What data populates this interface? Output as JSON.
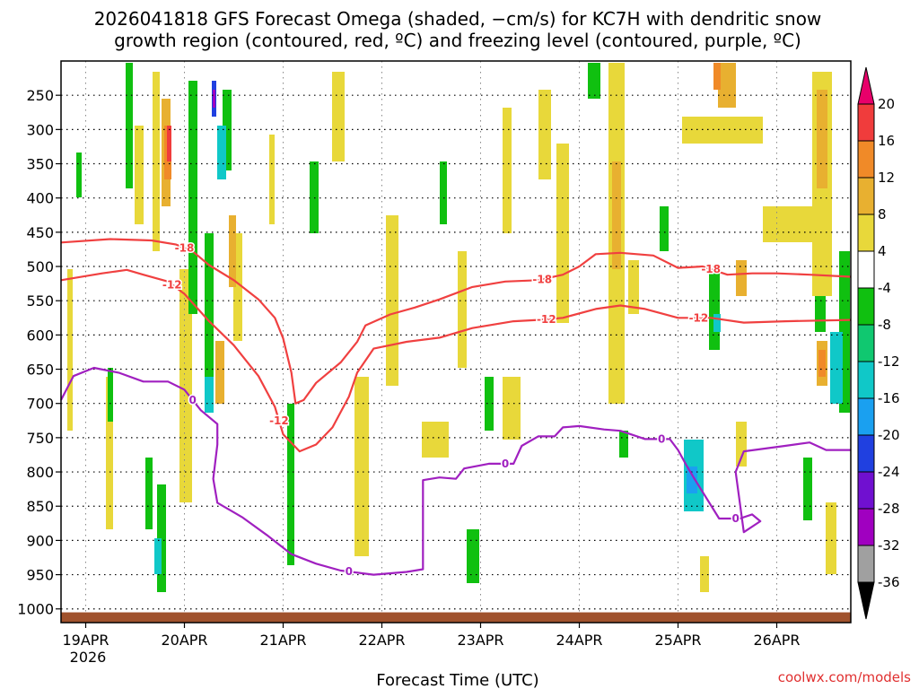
{
  "chart_data": {
    "type": "heatmap",
    "title_line1": "2026041818 GFS Forecast Omega (shaded, −cm/s) for KC7H with dendritic snow",
    "title_line2": "growth region (contoured, red, ºC) and freezing level (contoured, purple, ºC)",
    "xlabel": "Forecast Time (UTC)",
    "ylabel": "",
    "credit": "coolwx.com/models",
    "x_range_hours": [
      0,
      192
    ],
    "y_range_hpa": [
      200,
      1020
    ],
    "x_ticks": [
      {
        "label": "19APR",
        "hour": 6
      },
      {
        "label": "20APR",
        "hour": 30
      },
      {
        "label": "21APR",
        "hour": 54
      },
      {
        "label": "22APR",
        "hour": 78
      },
      {
        "label": "23APR",
        "hour": 102
      },
      {
        "label": "24APR",
        "hour": 126
      },
      {
        "label": "25APR",
        "hour": 150
      },
      {
        "label": "26APR",
        "hour": 174
      }
    ],
    "x_year_label": "2026",
    "y_ticks": [
      250,
      300,
      350,
      400,
      450,
      500,
      550,
      600,
      650,
      700,
      750,
      800,
      850,
      900,
      950,
      1000
    ],
    "colorbar": {
      "levels": [
        20,
        16,
        12,
        8,
        4,
        -4,
        -8,
        -12,
        -16,
        -20,
        -24,
        -28,
        -32,
        -36
      ],
      "colors": [
        "#e8006a",
        "#f03c3c",
        "#f08a28",
        "#e8b030",
        "#e8d83a",
        "#ffffff",
        "#10c010",
        "#10c870",
        "#10c8c8",
        "#1aa0f0",
        "#2040e0",
        "#7010d0",
        "#a000c0",
        "#a0a0a0",
        "#000000"
      ]
    },
    "contours": [
      {
        "name": "-18",
        "color": "#f04040",
        "label": "-18",
        "points": [
          [
            0,
            465
          ],
          [
            12,
            460
          ],
          [
            22,
            462
          ],
          [
            28,
            468
          ],
          [
            32,
            478
          ],
          [
            36,
            498
          ],
          [
            42,
            520
          ],
          [
            48,
            548
          ],
          [
            52,
            575
          ],
          [
            54,
            605
          ],
          [
            56,
            655
          ],
          [
            57,
            700
          ],
          [
            59,
            695
          ],
          [
            62,
            670
          ],
          [
            68,
            640
          ],
          [
            72,
            610
          ],
          [
            74,
            586
          ],
          [
            80,
            570
          ],
          [
            86,
            560
          ],
          [
            92,
            548
          ],
          [
            100,
            530
          ],
          [
            108,
            522
          ],
          [
            116,
            520
          ],
          [
            122,
            512
          ],
          [
            126,
            500
          ],
          [
            130,
            482
          ],
          [
            136,
            480
          ],
          [
            144,
            484
          ],
          [
            150,
            502
          ],
          [
            156,
            500
          ],
          [
            162,
            512
          ],
          [
            168,
            510
          ],
          [
            174,
            510
          ],
          [
            182,
            512
          ],
          [
            192,
            515
          ]
        ],
        "label_hours": [
          30,
          117,
          158
        ]
      },
      {
        "name": "-12",
        "color": "#f04040",
        "label": "-12",
        "points": [
          [
            0,
            520
          ],
          [
            10,
            510
          ],
          [
            16,
            505
          ],
          [
            20,
            512
          ],
          [
            26,
            522
          ],
          [
            30,
            540
          ],
          [
            36,
            580
          ],
          [
            42,
            615
          ],
          [
            48,
            660
          ],
          [
            52,
            705
          ],
          [
            54,
            745
          ],
          [
            58,
            770
          ],
          [
            62,
            760
          ],
          [
            66,
            735
          ],
          [
            70,
            690
          ],
          [
            72,
            655
          ],
          [
            76,
            620
          ],
          [
            84,
            610
          ],
          [
            92,
            604
          ],
          [
            100,
            590
          ],
          [
            110,
            580
          ],
          [
            116,
            578
          ],
          [
            122,
            575
          ],
          [
            130,
            562
          ],
          [
            136,
            557
          ],
          [
            142,
            562
          ],
          [
            150,
            575
          ],
          [
            158,
            575
          ],
          [
            166,
            582
          ],
          [
            176,
            580
          ],
          [
            192,
            578
          ]
        ],
        "label_hours": [
          27,
          53,
          118,
          155
        ]
      },
      {
        "name": "0",
        "color": "#a020c0",
        "label": "0",
        "points": [
          [
            0,
            695
          ],
          [
            3,
            660
          ],
          [
            8,
            648
          ],
          [
            14,
            655
          ],
          [
            20,
            668
          ],
          [
            26,
            668
          ],
          [
            30,
            680
          ],
          [
            34,
            710
          ],
          [
            38,
            730
          ],
          [
            38,
            760
          ],
          [
            37,
            810
          ],
          [
            38,
            845
          ],
          [
            44,
            866
          ],
          [
            50,
            892
          ],
          [
            56,
            920
          ],
          [
            62,
            934
          ],
          [
            68,
            944
          ],
          [
            76,
            950
          ],
          [
            84,
            946
          ],
          [
            88,
            942
          ],
          [
            88,
            918
          ],
          [
            88,
            812
          ],
          [
            92,
            808
          ],
          [
            96,
            810
          ],
          [
            98,
            795
          ],
          [
            104,
            788
          ],
          [
            110,
            788
          ],
          [
            112,
            762
          ],
          [
            116,
            748
          ],
          [
            120,
            748
          ],
          [
            122,
            735
          ],
          [
            126,
            733
          ],
          [
            132,
            738
          ],
          [
            136,
            740
          ],
          [
            142,
            752
          ],
          [
            148,
            752
          ],
          [
            150,
            768
          ],
          [
            152,
            790
          ],
          [
            154,
            810
          ],
          [
            160,
            868
          ],
          [
            165,
            868
          ],
          [
            168,
            862
          ],
          [
            170,
            872
          ],
          [
            166,
            888
          ],
          [
            164,
            800
          ],
          [
            166,
            770
          ],
          [
            176,
            762
          ],
          [
            182,
            757
          ],
          [
            186,
            768
          ],
          [
            192,
            768
          ]
        ],
        "label_hours": [
          32,
          70,
          108,
          146,
          164
        ]
      }
    ]
  }
}
